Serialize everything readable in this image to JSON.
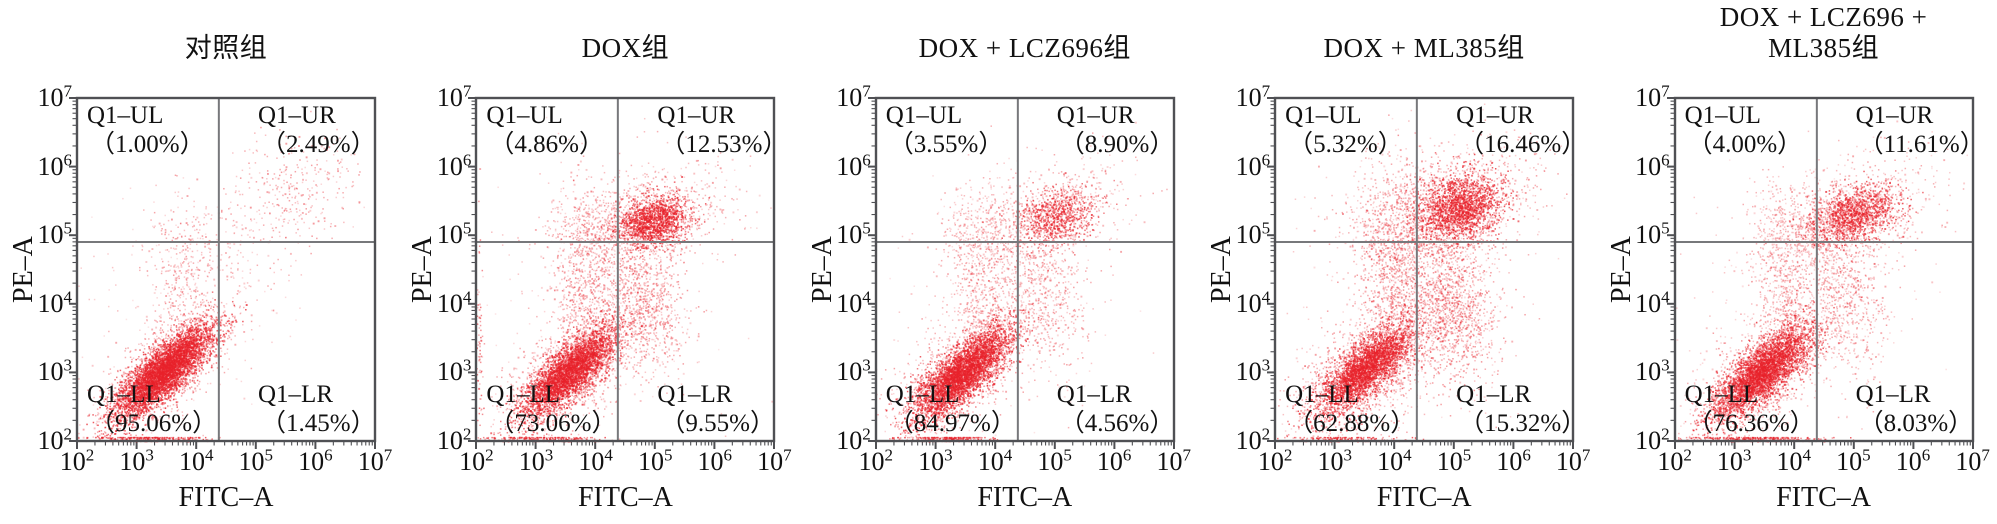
{
  "axis": {
    "x_label": "FITC–A",
    "y_label": "PE–A",
    "exponents": [
      2,
      3,
      4,
      5,
      6,
      7
    ],
    "tick_base": "10"
  },
  "colors": {
    "dot": "#e8222b",
    "box_border": "#4f5054",
    "gate_line": "#77787b",
    "text": "#111111"
  },
  "quadrant_gate": {
    "x_log": 4.38,
    "y_log": 4.9
  },
  "plots": [
    {
      "seed": 101,
      "title_lines": [
        "对照组"
      ],
      "quadrants": {
        "ul": {
          "label": "Q1–UL",
          "pct": "（1.00%）"
        },
        "ur": {
          "label": "Q1–UR",
          "pct": "（2.49%）"
        },
        "ll": {
          "label": "Q1–LL",
          "pct": "（95.06%）"
        },
        "lr": {
          "label": "Q1–LR",
          "pct": "（1.45%）"
        }
      },
      "clusters": [
        [
          3.45,
          3.02,
          0.5,
          0.16,
          38,
          5200,
          0.55
        ],
        [
          3.45,
          3.05,
          0.75,
          0.3,
          38,
          900,
          0.3
        ],
        [
          3.75,
          4.3,
          0.25,
          0.55,
          0,
          260,
          0.32
        ],
        [
          5.65,
          5.65,
          0.55,
          0.42,
          25,
          300,
          0.32
        ],
        [
          4.6,
          4.55,
          0.8,
          0.45,
          30,
          150,
          0.26
        ],
        [
          3.8,
          4.9,
          0.5,
          0.4,
          0,
          120,
          0.26
        ],
        [
          3.2,
          2.04,
          0.45,
          0.03,
          0,
          280,
          0.55
        ],
        [
          3.6,
          3.8,
          1.1,
          1.0,
          0,
          120,
          0.2
        ]
      ]
    },
    {
      "seed": 202,
      "title_lines": [
        "DOX组"
      ],
      "quadrants": {
        "ul": {
          "label": "Q1–UL",
          "pct": "（4.86%）"
        },
        "ur": {
          "label": "Q1–UR",
          "pct": "（12.53%）"
        },
        "ll": {
          "label": "Q1–LL",
          "pct": "（73.06%）"
        },
        "lr": {
          "label": "Q1–LR",
          "pct": "（9.55%）"
        }
      },
      "clusters": [
        [
          3.55,
          3.0,
          0.48,
          0.16,
          38,
          3900,
          0.55
        ],
        [
          3.55,
          3.05,
          0.75,
          0.33,
          38,
          1100,
          0.3
        ],
        [
          3.85,
          4.1,
          0.3,
          0.75,
          0,
          800,
          0.32
        ],
        [
          4.97,
          5.22,
          0.3,
          0.18,
          15,
          1500,
          0.55
        ],
        [
          5.0,
          5.25,
          0.65,
          0.38,
          20,
          700,
          0.3
        ],
        [
          4.1,
          5.1,
          0.5,
          0.35,
          0,
          450,
          0.28
        ],
        [
          4.85,
          4.0,
          0.33,
          0.5,
          10,
          750,
          0.32
        ],
        [
          3.2,
          2.04,
          0.5,
          0.03,
          0,
          220,
          0.55
        ],
        [
          2.04,
          3.3,
          0.03,
          0.8,
          0,
          70,
          0.45
        ],
        [
          3.8,
          3.9,
          1.2,
          1.1,
          0,
          150,
          0.2
        ]
      ]
    },
    {
      "seed": 303,
      "title_lines": [
        "DOX + LCZ696组"
      ],
      "quadrants": {
        "ul": {
          "label": "Q1–UL",
          "pct": "（3.55%）"
        },
        "ur": {
          "label": "Q1–UR",
          "pct": "（8.90%）"
        },
        "ll": {
          "label": "Q1–LL",
          "pct": "（84.97%）"
        },
        "lr": {
          "label": "Q1–LR",
          "pct": "（4.56%）"
        }
      },
      "clusters": [
        [
          3.45,
          3.0,
          0.5,
          0.17,
          38,
          4300,
          0.55
        ],
        [
          3.45,
          3.05,
          0.78,
          0.33,
          38,
          1000,
          0.3
        ],
        [
          3.8,
          4.2,
          0.28,
          0.7,
          0,
          600,
          0.3
        ],
        [
          5.02,
          5.3,
          0.33,
          0.2,
          15,
          850,
          0.5
        ],
        [
          5.0,
          5.3,
          0.7,
          0.4,
          20,
          500,
          0.28
        ],
        [
          4.0,
          5.1,
          0.5,
          0.35,
          0,
          350,
          0.26
        ],
        [
          4.85,
          4.05,
          0.35,
          0.55,
          10,
          480,
          0.3
        ],
        [
          3.1,
          2.04,
          0.45,
          0.03,
          0,
          240,
          0.55
        ],
        [
          3.8,
          3.9,
          1.2,
          1.1,
          0,
          140,
          0.2
        ]
      ]
    },
    {
      "seed": 404,
      "title_lines": [
        "DOX + ML385组"
      ],
      "quadrants": {
        "ul": {
          "label": "Q1–UL",
          "pct": "（5.32%）"
        },
        "ur": {
          "label": "Q1–UR",
          "pct": "（16.46%）"
        },
        "ll": {
          "label": "Q1–LL",
          "pct": "（62.88%）"
        },
        "lr": {
          "label": "Q1–LR",
          "pct": "（15.32%）"
        }
      },
      "clusters": [
        [
          3.5,
          3.05,
          0.45,
          0.17,
          38,
          3300,
          0.55
        ],
        [
          3.55,
          3.1,
          0.75,
          0.35,
          38,
          1200,
          0.3
        ],
        [
          3.95,
          4.3,
          0.3,
          0.85,
          0,
          1000,
          0.34
        ],
        [
          5.08,
          5.42,
          0.36,
          0.24,
          15,
          1900,
          0.55
        ],
        [
          5.05,
          5.4,
          0.75,
          0.45,
          20,
          900,
          0.3
        ],
        [
          4.1,
          5.2,
          0.55,
          0.4,
          0,
          500,
          0.28
        ],
        [
          4.95,
          3.95,
          0.38,
          0.55,
          10,
          1250,
          0.34
        ],
        [
          3.2,
          2.04,
          0.5,
          0.03,
          0,
          180,
          0.55
        ],
        [
          4.0,
          4.0,
          1.25,
          1.15,
          0,
          200,
          0.2
        ]
      ]
    },
    {
      "seed": 505,
      "title_lines": [
        "DOX + LCZ696 +",
        "ML385组"
      ],
      "quadrants": {
        "ul": {
          "label": "Q1–UL",
          "pct": "（4.00%）"
        },
        "ur": {
          "label": "Q1–UR",
          "pct": "（11.61%）"
        },
        "ll": {
          "label": "Q1–LL",
          "pct": "（76.36%）"
        },
        "lr": {
          "label": "Q1–LR",
          "pct": "（8.03%）"
        }
      },
      "clusters": [
        [
          3.45,
          3.0,
          0.48,
          0.17,
          38,
          3900,
          0.55
        ],
        [
          3.5,
          3.05,
          0.75,
          0.33,
          38,
          1000,
          0.3
        ],
        [
          3.8,
          4.2,
          0.28,
          0.7,
          0,
          600,
          0.3
        ],
        [
          5.0,
          5.3,
          0.38,
          0.2,
          15,
          1400,
          0.52
        ],
        [
          5.0,
          5.3,
          0.75,
          0.4,
          20,
          650,
          0.28
        ],
        [
          4.05,
          5.15,
          0.5,
          0.35,
          0,
          380,
          0.26
        ],
        [
          4.85,
          4.05,
          0.35,
          0.55,
          10,
          620,
          0.3
        ],
        [
          3.3,
          2.04,
          0.6,
          0.03,
          0,
          320,
          0.55
        ],
        [
          3.9,
          3.95,
          1.2,
          1.1,
          0,
          150,
          0.2
        ]
      ]
    }
  ],
  "chart_data": [
    {
      "type": "scatter",
      "title": "对照组",
      "xlabel": "FITC–A",
      "ylabel": "PE–A",
      "xscale": "log",
      "yscale": "log",
      "xlim": [
        100,
        10000000
      ],
      "ylim": [
        100,
        10000000
      ],
      "gate_x": 24000,
      "gate_y": 79000,
      "quadrant_percent": {
        "Q1-UL": 1.0,
        "Q1-UR": 2.49,
        "Q1-LL": 95.06,
        "Q1-LR": 1.45
      },
      "legend": "none",
      "grid": false
    },
    {
      "type": "scatter",
      "title": "DOX组",
      "xlabel": "FITC–A",
      "ylabel": "PE–A",
      "xscale": "log",
      "yscale": "log",
      "xlim": [
        100,
        10000000
      ],
      "ylim": [
        100,
        10000000
      ],
      "gate_x": 24000,
      "gate_y": 79000,
      "quadrant_percent": {
        "Q1-UL": 4.86,
        "Q1-UR": 12.53,
        "Q1-LL": 73.06,
        "Q1-LR": 9.55
      },
      "legend": "none",
      "grid": false
    },
    {
      "type": "scatter",
      "title": "DOX + LCZ696组",
      "xlabel": "FITC–A",
      "ylabel": "PE–A",
      "xscale": "log",
      "yscale": "log",
      "xlim": [
        100,
        10000000
      ],
      "ylim": [
        100,
        10000000
      ],
      "gate_x": 24000,
      "gate_y": 79000,
      "quadrant_percent": {
        "Q1-UL": 3.55,
        "Q1-UR": 8.9,
        "Q1-LL": 84.97,
        "Q1-LR": 4.56
      },
      "legend": "none",
      "grid": false
    },
    {
      "type": "scatter",
      "title": "DOX + ML385组",
      "xlabel": "FITC–A",
      "ylabel": "PE–A",
      "xscale": "log",
      "yscale": "log",
      "xlim": [
        100,
        10000000
      ],
      "ylim": [
        100,
        10000000
      ],
      "gate_x": 24000,
      "gate_y": 79000,
      "quadrant_percent": {
        "Q1-UL": 5.32,
        "Q1-UR": 16.46,
        "Q1-LL": 62.88,
        "Q1-LR": 15.32
      },
      "legend": "none",
      "grid": false
    },
    {
      "type": "scatter",
      "title": "DOX + LCZ696 + ML385组",
      "xlabel": "FITC–A",
      "ylabel": "PE–A",
      "xscale": "log",
      "yscale": "log",
      "xlim": [
        100,
        10000000
      ],
      "ylim": [
        100,
        10000000
      ],
      "gate_x": 24000,
      "gate_y": 79000,
      "quadrant_percent": {
        "Q1-UL": 4.0,
        "Q1-UR": 11.61,
        "Q1-LL": 76.36,
        "Q1-LR": 8.03
      },
      "legend": "none",
      "grid": false
    }
  ]
}
